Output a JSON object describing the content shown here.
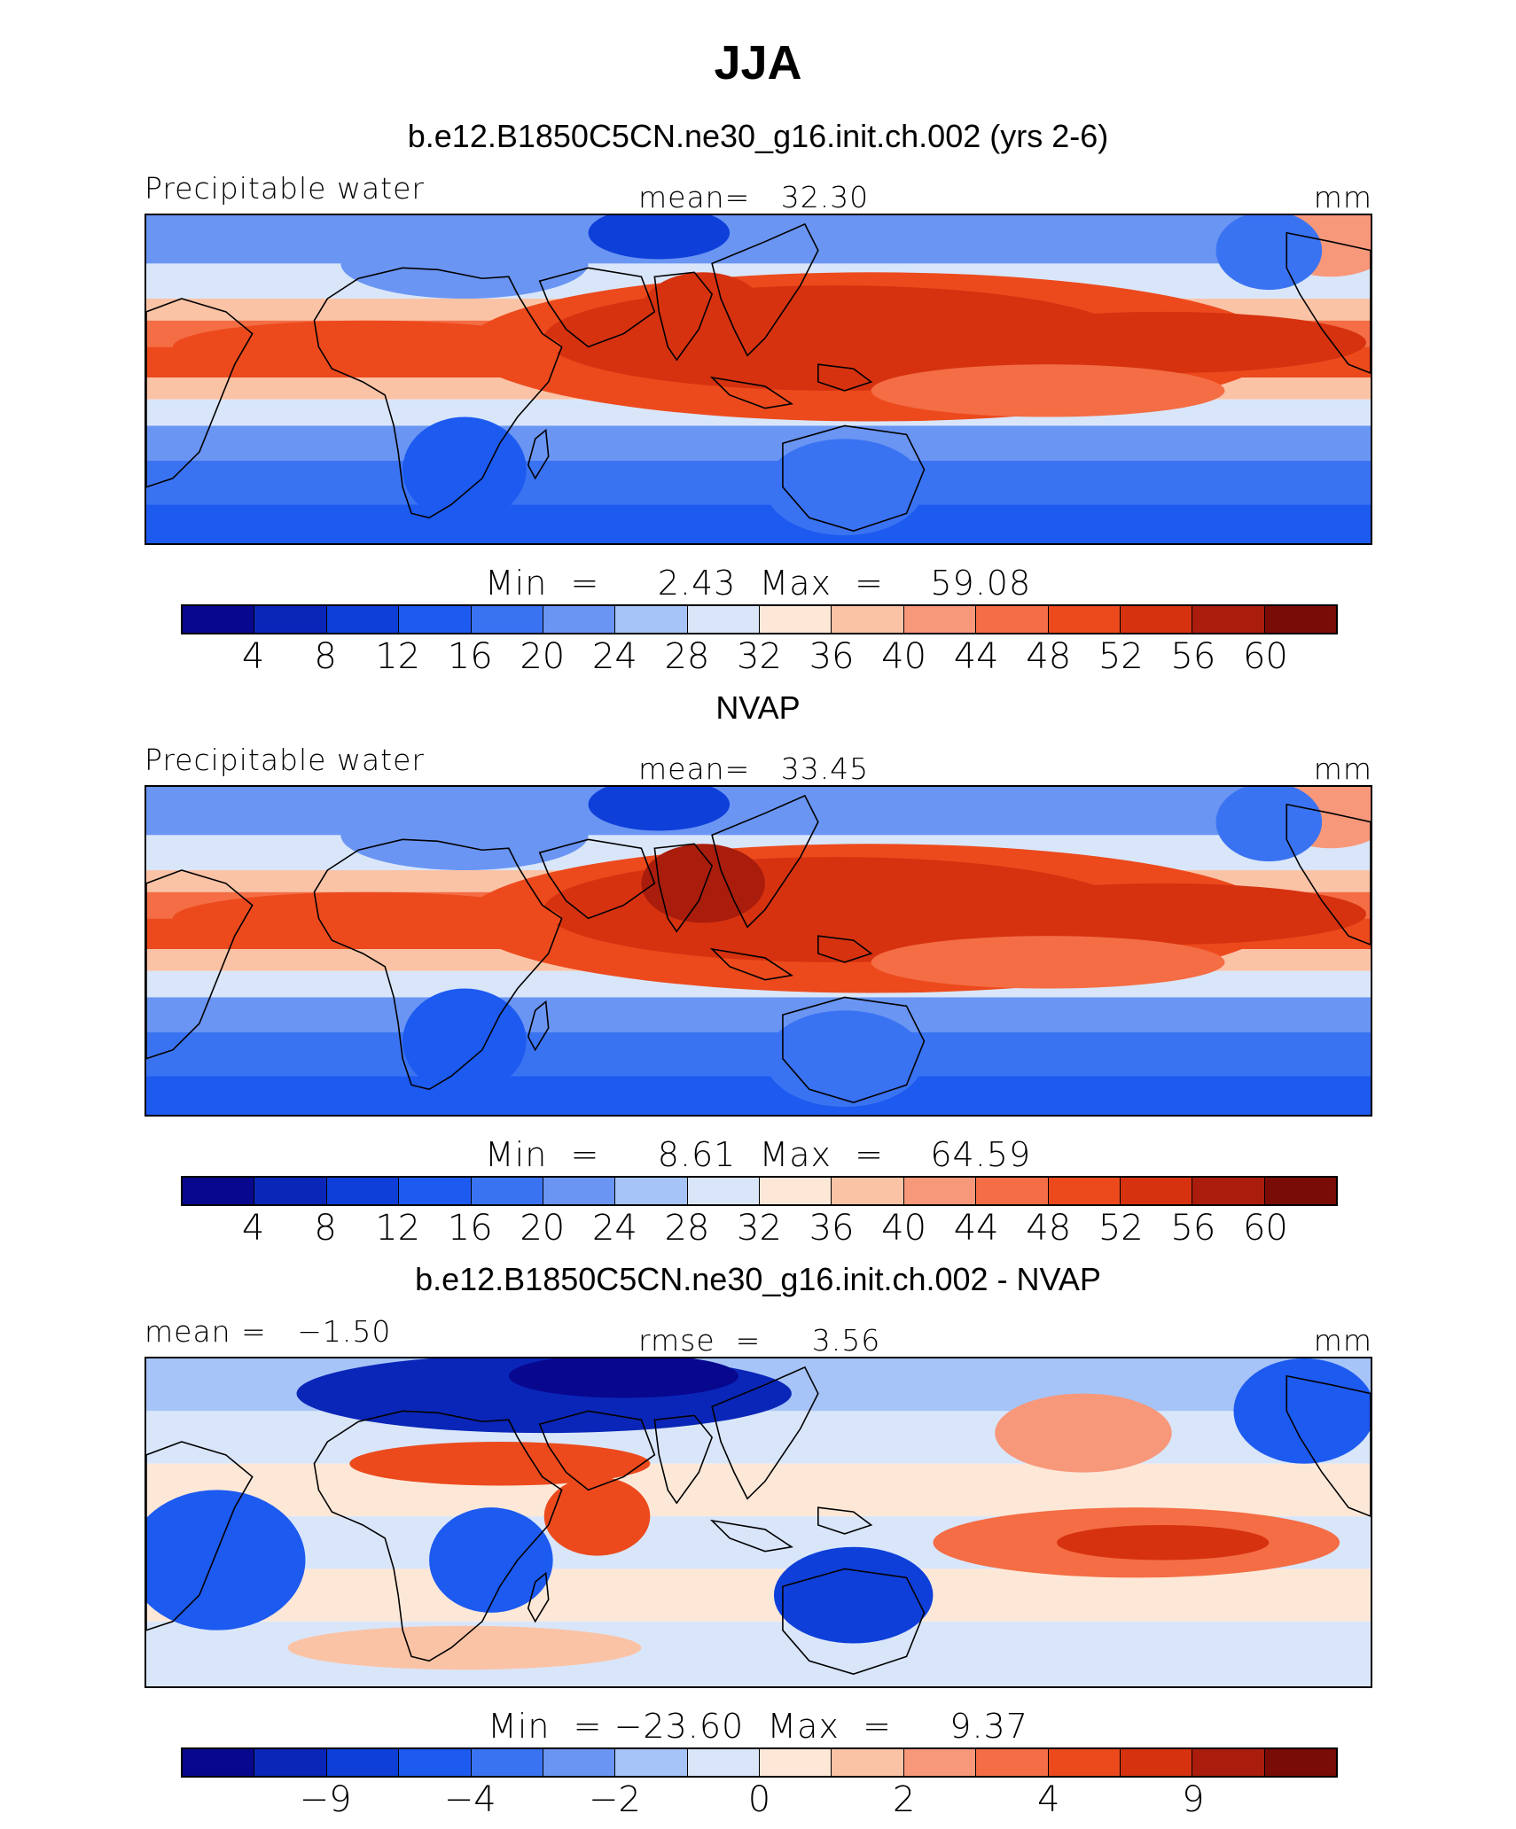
{
  "title": "JJA",
  "panels": [
    {
      "run_title": "b.e12.B1850C5CN.ne30_g16.init.ch.002 (yrs 2-6)",
      "left_label": "Precipitable water",
      "center_label": "mean=   32.30",
      "right_label": "mm",
      "minmax": "Min  =     2.43  Max  =    59.08",
      "tick_labels": [
        "4",
        "8",
        "12",
        "16",
        "20",
        "24",
        "28",
        "32",
        "36",
        "40",
        "44",
        "48",
        "52",
        "56",
        "60"
      ],
      "kind": "abs",
      "stats": {
        "mean": 32.3,
        "min": 2.43,
        "max": 59.08
      }
    },
    {
      "run_title": "NVAP",
      "left_label": "Precipitable water",
      "center_label": "mean=   33.45",
      "right_label": "mm",
      "minmax": "Min  =     8.61  Max  =    64.59",
      "tick_labels": [
        "4",
        "8",
        "12",
        "16",
        "20",
        "24",
        "28",
        "32",
        "36",
        "40",
        "44",
        "48",
        "52",
        "56",
        "60"
      ],
      "kind": "abs",
      "stats": {
        "mean": 33.45,
        "min": 8.61,
        "max": 64.59
      }
    },
    {
      "run_title": "b.e12.B1850C5CN.ne30_g16.init.ch.002 - NVAP",
      "left_label": "mean =   −1.50",
      "center_label": "rmse  =     3.56",
      "right_label": "mm",
      "minmax": "Min  = −23.60  Max  =     9.37",
      "tick_labels": [
        "−9",
        "−4",
        "−2",
        "0",
        "2",
        "4",
        "9"
      ],
      "kind": "diff",
      "stats": {
        "mean": -1.5,
        "rmse": 3.56,
        "min": -23.6,
        "max": 9.37
      }
    }
  ],
  "colorbar_colors": [
    "#08088f",
    "#0a26b8",
    "#0e3fd9",
    "#1d5af0",
    "#3a73f2",
    "#6a95f3",
    "#a6c4f7",
    "#d9e6fa",
    "#fde8d8",
    "#fbc3a6",
    "#f8987a",
    "#f46d45",
    "#ec4a1d",
    "#d63210",
    "#aa1d0c",
    "#7a0c08"
  ]
}
